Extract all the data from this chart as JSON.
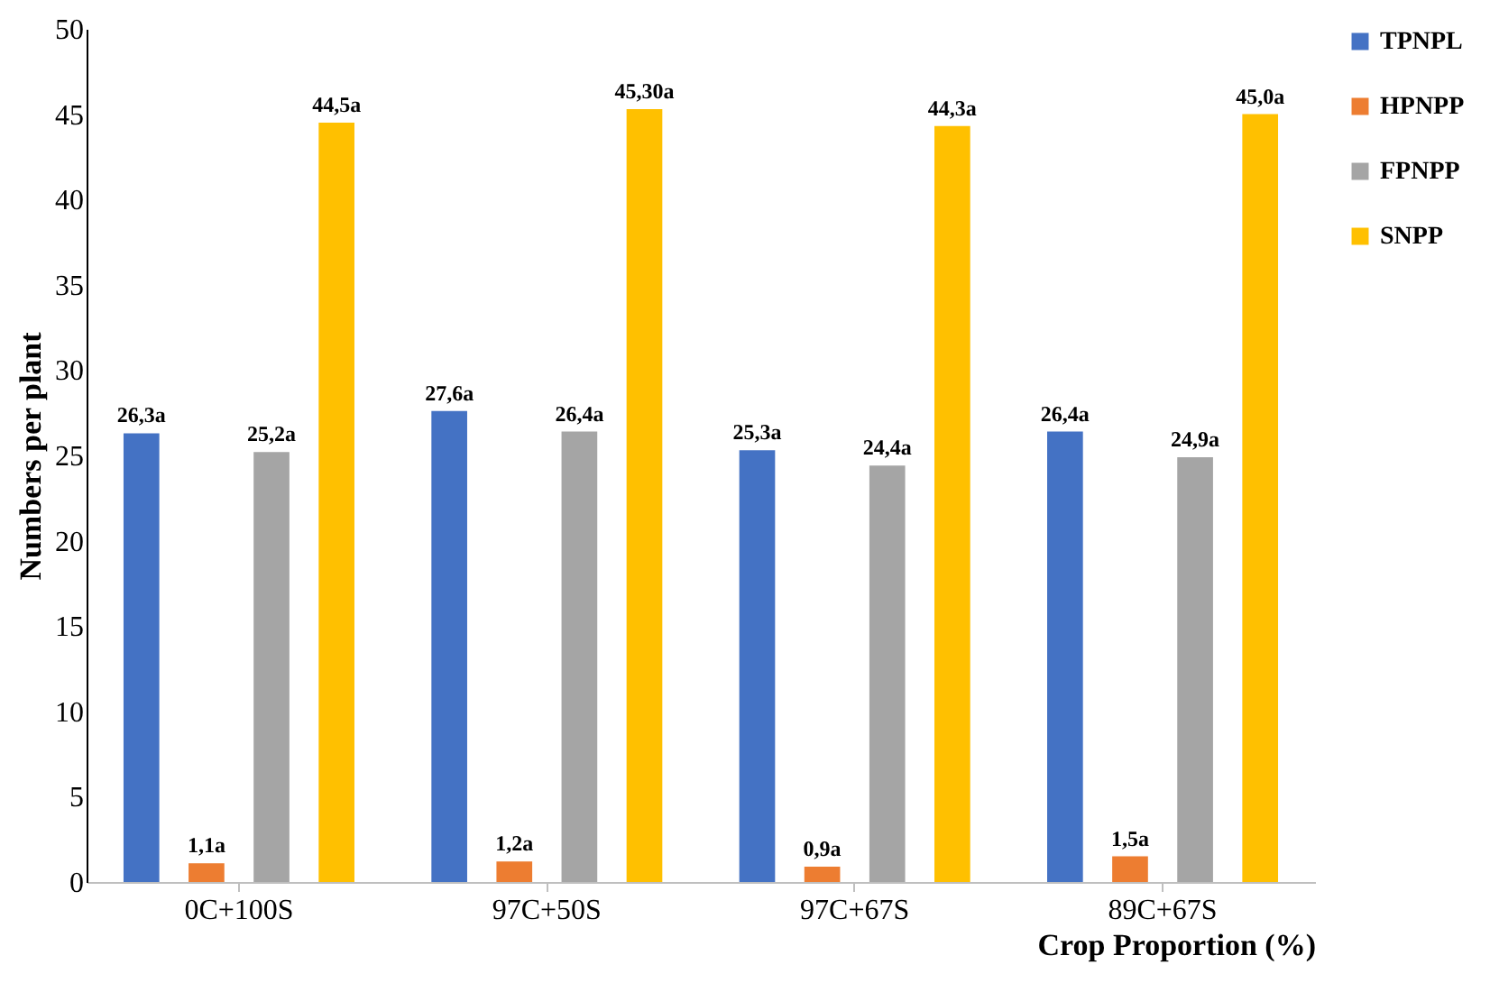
{
  "chart_data": {
    "type": "bar",
    "xlabel": "Crop Proportion (%)",
    "ylabel": "Numbers per plant",
    "categories": [
      "0C+100S",
      "97C+50S",
      "97C+67S",
      "89C+67S"
    ],
    "series": [
      {
        "name": "TPNPL",
        "color": "#4472c4",
        "values": [
          26.3,
          27.6,
          25.3,
          26.4
        ],
        "value_labels": [
          "26,3a",
          "27,6a",
          "25,3a",
          "26,4a"
        ]
      },
      {
        "name": "HPNPP",
        "color": "#ed7d31",
        "values": [
          1.1,
          1.2,
          0.9,
          1.5
        ],
        "value_labels": [
          "1,1a",
          "1,2a",
          "0,9a",
          "1,5a"
        ]
      },
      {
        "name": "FPNPP",
        "color": "#a5a5a5",
        "values": [
          25.2,
          26.4,
          24.4,
          24.9
        ],
        "value_labels": [
          "25,2a",
          "26,4a",
          "24,4a",
          "24,9a"
        ]
      },
      {
        "name": "SNPP",
        "color": "#ffc000",
        "values": [
          44.5,
          45.3,
          44.3,
          45.0
        ],
        "value_labels": [
          "44,5a",
          "45,30a",
          "44,3a",
          "45,0a"
        ]
      }
    ],
    "ylim": [
      0,
      50
    ],
    "yticks": [
      0,
      5,
      10,
      15,
      20,
      25,
      30,
      35,
      40,
      45,
      50
    ],
    "grid": false,
    "legend": "right"
  }
}
